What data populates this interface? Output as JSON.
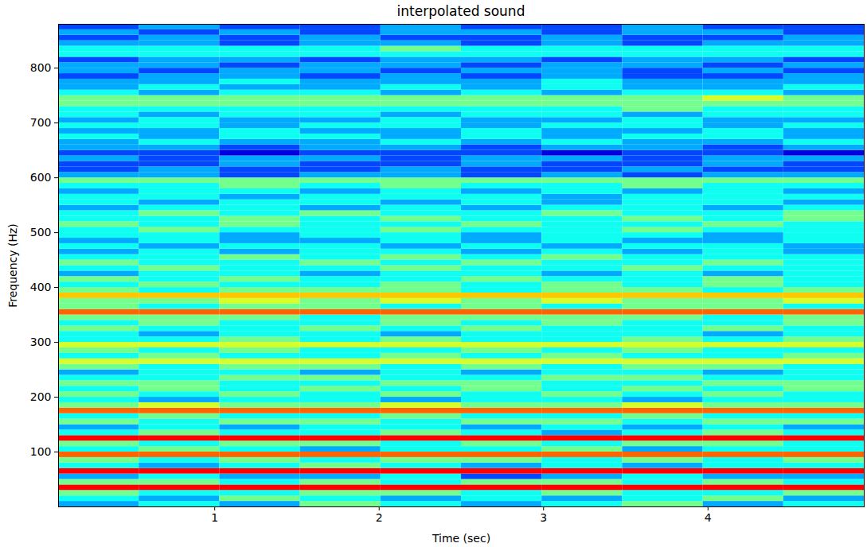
{
  "chart_data": {
    "type": "heatmap",
    "title": "interpolated sound",
    "x_label": "Time (sec)",
    "y_label": "Frequency (Hz)",
    "xlim": [
      0.05,
      4.95
    ],
    "ylim": [
      0,
      880
    ],
    "xticks": [
      1,
      2,
      3,
      4
    ],
    "yticks": [
      100,
      200,
      300,
      400,
      500,
      600,
      700,
      800
    ],
    "zlim": [
      0,
      9
    ],
    "time_edges": [
      0.05,
      0.54,
      1.03,
      1.52,
      2.01,
      2.5,
      2.99,
      3.48,
      3.97,
      4.46,
      4.95
    ],
    "freq_edges": [
      0,
      10,
      20,
      30,
      40,
      50,
      60,
      70,
      80,
      90,
      100,
      110,
      120,
      130,
      140,
      150,
      160,
      170,
      180,
      190,
      200,
      210,
      220,
      230,
      240,
      250,
      260,
      270,
      280,
      290,
      300,
      310,
      320,
      330,
      340,
      350,
      360,
      370,
      380,
      390,
      400,
      410,
      420,
      430,
      440,
      450,
      460,
      470,
      480,
      490,
      500,
      510,
      520,
      530,
      540,
      550,
      560,
      570,
      580,
      590,
      600,
      610,
      620,
      630,
      640,
      650,
      660,
      670,
      680,
      690,
      700,
      710,
      720,
      730,
      740,
      750,
      760,
      770,
      780,
      790,
      800,
      810,
      820,
      830,
      840,
      850,
      860,
      870,
      880
    ],
    "cells": [
      [
        3,
        4,
        3,
        5,
        4,
        3,
        4,
        5,
        3,
        4
      ],
      [
        4,
        3,
        5,
        4,
        3,
        4,
        3,
        4,
        5,
        3
      ],
      [
        5,
        4,
        4,
        5,
        5,
        4,
        5,
        4,
        4,
        5
      ],
      [
        9,
        9,
        9,
        9,
        9,
        9,
        9,
        9,
        9,
        9
      ],
      [
        5,
        5,
        4,
        5,
        4,
        5,
        5,
        4,
        5,
        4
      ],
      [
        3,
        4,
        3,
        3,
        4,
        2,
        3,
        4,
        3,
        3
      ],
      [
        9,
        9,
        9,
        9,
        9,
        9,
        9,
        9,
        9,
        9
      ],
      [
        4,
        3,
        4,
        5,
        4,
        3,
        4,
        3,
        4,
        4
      ],
      [
        5,
        4,
        5,
        4,
        5,
        5,
        4,
        5,
        4,
        5
      ],
      [
        8,
        8,
        8,
        8,
        8,
        8,
        8,
        8,
        8,
        8
      ],
      [
        4,
        5,
        4,
        3,
        4,
        4,
        5,
        3,
        4,
        4
      ],
      [
        5,
        4,
        5,
        5,
        4,
        5,
        4,
        5,
        5,
        4
      ],
      [
        9,
        9,
        9,
        9,
        9,
        9,
        9,
        9,
        9,
        9
      ],
      [
        4,
        5,
        4,
        4,
        5,
        4,
        3,
        4,
        5,
        4
      ],
      [
        3,
        4,
        3,
        4,
        4,
        3,
        4,
        3,
        4,
        3
      ],
      [
        5,
        4,
        5,
        5,
        4,
        5,
        5,
        4,
        5,
        5
      ],
      [
        4,
        5,
        4,
        4,
        5,
        4,
        4,
        5,
        4,
        4
      ],
      [
        8,
        8,
        8,
        8,
        8,
        8,
        8,
        8,
        8,
        8
      ],
      [
        5,
        6,
        5,
        5,
        6,
        5,
        5,
        6,
        5,
        5
      ],
      [
        4,
        3,
        4,
        4,
        3,
        4,
        4,
        3,
        4,
        4
      ],
      [
        5,
        4,
        5,
        4,
        5,
        4,
        5,
        4,
        5,
        4
      ],
      [
        4,
        5,
        4,
        5,
        4,
        5,
        4,
        5,
        4,
        5
      ],
      [
        5,
        5,
        4,
        4,
        5,
        5,
        4,
        4,
        5,
        5
      ],
      [
        4,
        4,
        5,
        5,
        4,
        4,
        5,
        5,
        4,
        4
      ],
      [
        3,
        4,
        4,
        3,
        4,
        3,
        4,
        4,
        3,
        4
      ],
      [
        5,
        4,
        5,
        5,
        4,
        5,
        4,
        5,
        5,
        4
      ],
      [
        6,
        6,
        6,
        6,
        6,
        6,
        6,
        6,
        6,
        6
      ],
      [
        4,
        5,
        4,
        4,
        5,
        4,
        5,
        4,
        4,
        5
      ],
      [
        5,
        4,
        5,
        4,
        4,
        5,
        4,
        5,
        4,
        4
      ],
      [
        6,
        6,
        6,
        6,
        6,
        6,
        6,
        6,
        6,
        6
      ],
      [
        4,
        4,
        5,
        4,
        5,
        4,
        4,
        5,
        4,
        5
      ],
      [
        4,
        3,
        4,
        4,
        3,
        4,
        4,
        4,
        3,
        4
      ],
      [
        5,
        4,
        4,
        5,
        4,
        5,
        4,
        4,
        5,
        4
      ],
      [
        4,
        5,
        4,
        4,
        5,
        4,
        5,
        4,
        4,
        5
      ],
      [
        5,
        5,
        5,
        4,
        5,
        5,
        5,
        5,
        4,
        5
      ],
      [
        8,
        8,
        8,
        8,
        8,
        8,
        8,
        8,
        8,
        8
      ],
      [
        5,
        4,
        5,
        5,
        4,
        5,
        4,
        5,
        5,
        4
      ],
      [
        5,
        5,
        6,
        5,
        6,
        5,
        6,
        5,
        5,
        6
      ],
      [
        7,
        7,
        7,
        7,
        7,
        7,
        7,
        7,
        7,
        7
      ],
      [
        5,
        4,
        5,
        5,
        5,
        4,
        5,
        5,
        4,
        5
      ],
      [
        4,
        5,
        4,
        4,
        5,
        4,
        5,
        4,
        5,
        4
      ],
      [
        5,
        4,
        5,
        4,
        4,
        5,
        4,
        4,
        5,
        4
      ],
      [
        3,
        4,
        4,
        3,
        4,
        4,
        3,
        4,
        3,
        4
      ],
      [
        4,
        5,
        4,
        4,
        5,
        4,
        4,
        5,
        4,
        4
      ],
      [
        5,
        4,
        4,
        5,
        4,
        5,
        4,
        4,
        5,
        4
      ],
      [
        4,
        4,
        5,
        4,
        5,
        4,
        5,
        4,
        4,
        4
      ],
      [
        3,
        4,
        3,
        4,
        4,
        3,
        4,
        3,
        4,
        3
      ],
      [
        4,
        3,
        4,
        4,
        3,
        4,
        3,
        4,
        4,
        3
      ],
      [
        3,
        4,
        3,
        3,
        4,
        3,
        4,
        3,
        3,
        4
      ],
      [
        4,
        4,
        3,
        4,
        4,
        3,
        4,
        4,
        3,
        4
      ],
      [
        4,
        5,
        4,
        4,
        5,
        4,
        4,
        5,
        4,
        4
      ],
      [
        5,
        4,
        5,
        4,
        4,
        5,
        4,
        4,
        5,
        4
      ],
      [
        4,
        4,
        5,
        4,
        5,
        4,
        4,
        5,
        4,
        5
      ],
      [
        4,
        5,
        4,
        5,
        4,
        4,
        5,
        4,
        4,
        5
      ],
      [
        3,
        4,
        4,
        3,
        4,
        3,
        4,
        4,
        3,
        4
      ],
      [
        4,
        3,
        4,
        4,
        3,
        4,
        3,
        4,
        4,
        3
      ],
      [
        4,
        4,
        3,
        4,
        4,
        4,
        3,
        4,
        4,
        4
      ],
      [
        3,
        4,
        4,
        3,
        4,
        3,
        4,
        3,
        4,
        3
      ],
      [
        4,
        4,
        5,
        4,
        5,
        4,
        4,
        5,
        4,
        4
      ],
      [
        5,
        5,
        5,
        5,
        5,
        5,
        5,
        5,
        5,
        5
      ],
      [
        3,
        3,
        2,
        3,
        3,
        2,
        3,
        2,
        3,
        3
      ],
      [
        2,
        3,
        2,
        2,
        3,
        2,
        2,
        3,
        2,
        2
      ],
      [
        2,
        2,
        3,
        2,
        2,
        3,
        2,
        2,
        3,
        2
      ],
      [
        3,
        2,
        3,
        3,
        2,
        3,
        3,
        2,
        3,
        3
      ],
      [
        2,
        2,
        1,
        2,
        2,
        2,
        1,
        2,
        2,
        1
      ],
      [
        3,
        3,
        2,
        3,
        3,
        2,
        3,
        3,
        2,
        3
      ],
      [
        3,
        4,
        3,
        3,
        4,
        3,
        4,
        3,
        3,
        4
      ],
      [
        4,
        3,
        4,
        4,
        3,
        4,
        3,
        4,
        4,
        3
      ],
      [
        3,
        3,
        4,
        3,
        3,
        4,
        3,
        3,
        4,
        3
      ],
      [
        4,
        4,
        3,
        4,
        4,
        3,
        4,
        4,
        3,
        4
      ],
      [
        3,
        4,
        3,
        3,
        4,
        3,
        3,
        4,
        3,
        3
      ],
      [
        4,
        3,
        4,
        4,
        3,
        4,
        4,
        3,
        4,
        4
      ],
      [
        4,
        4,
        4,
        4,
        4,
        4,
        4,
        5,
        4,
        4
      ],
      [
        5,
        5,
        5,
        5,
        5,
        5,
        5,
        5,
        5,
        5
      ],
      [
        5,
        5,
        5,
        5,
        5,
        5,
        5,
        5,
        6,
        5
      ],
      [
        4,
        3,
        4,
        4,
        3,
        4,
        3,
        4,
        4,
        3
      ],
      [
        3,
        4,
        3,
        3,
        4,
        3,
        4,
        3,
        3,
        4
      ],
      [
        3,
        3,
        4,
        3,
        3,
        3,
        4,
        3,
        3,
        3
      ],
      [
        2,
        3,
        3,
        2,
        3,
        2,
        3,
        2,
        2,
        3
      ],
      [
        3,
        2,
        3,
        3,
        2,
        3,
        3,
        2,
        3,
        2
      ],
      [
        3,
        3,
        2,
        3,
        3,
        2,
        3,
        3,
        2,
        3
      ],
      [
        2,
        3,
        3,
        2,
        3,
        3,
        2,
        3,
        3,
        2
      ],
      [
        4,
        4,
        4,
        4,
        4,
        4,
        4,
        4,
        4,
        4
      ],
      [
        4,
        4,
        4,
        4,
        5,
        4,
        4,
        4,
        4,
        4
      ],
      [
        3,
        3,
        2,
        3,
        3,
        2,
        3,
        2,
        3,
        3
      ],
      [
        2,
        3,
        2,
        3,
        2,
        2,
        3,
        2,
        2,
        3
      ],
      [
        3,
        2,
        3,
        2,
        3,
        3,
        2,
        3,
        3,
        2
      ],
      [
        2,
        3,
        2,
        2,
        3,
        2,
        2,
        3,
        2,
        2
      ]
    ]
  }
}
